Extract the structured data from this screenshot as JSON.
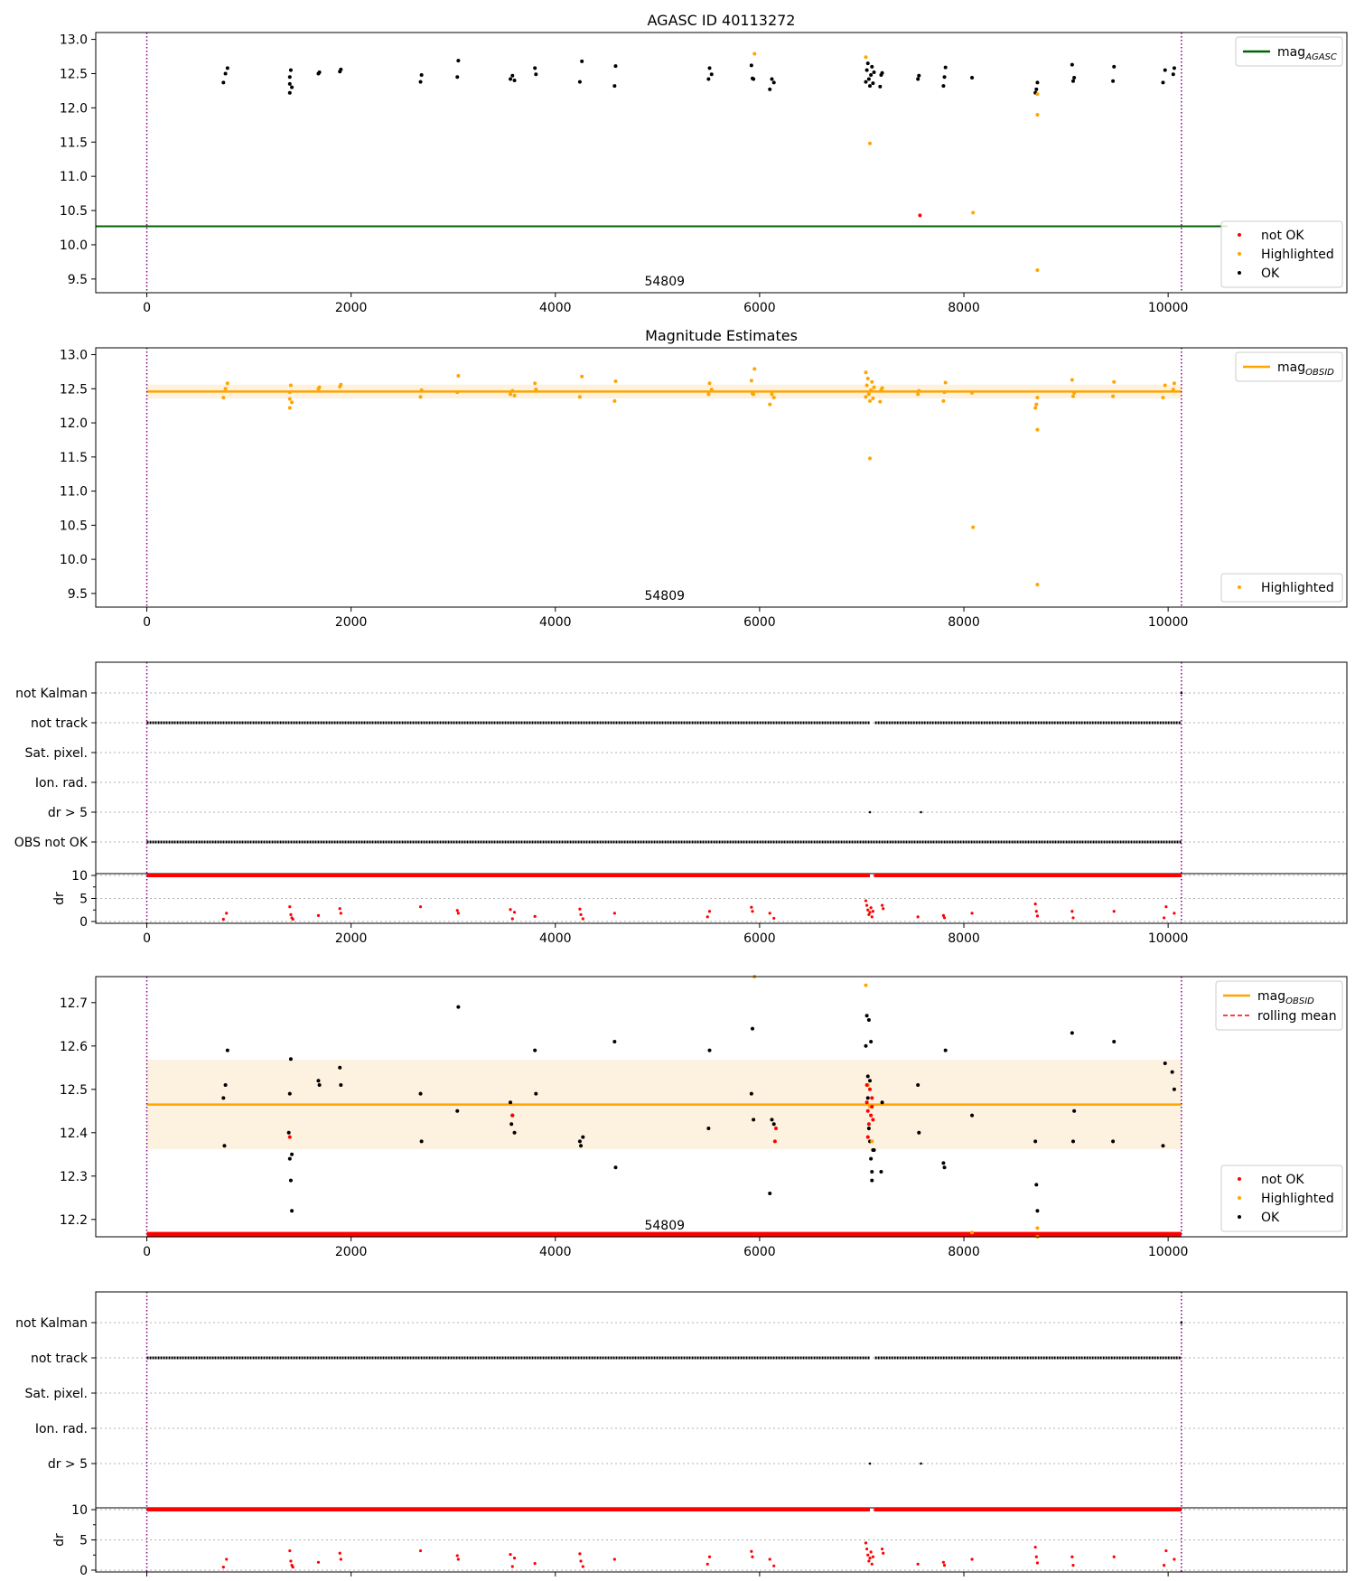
{
  "figure_title": "AGASC ID 40113272",
  "colors": {
    "not_ok": "#ff0000",
    "highlighted": "#ffa500",
    "ok": "#000000",
    "agasc_line": "#006400",
    "obsid_line": "#ffa500",
    "band": "#fdf1df",
    "obs_bound": "#800080",
    "grid": "#b0b0b0"
  },
  "chart_data": [
    {
      "id": "mag_vs_time",
      "type": "scatter",
      "title": "AGASC ID 40113272",
      "annotation": "54809",
      "xlim": [
        -500,
        11750
      ],
      "ylim": [
        9.3,
        13.1
      ],
      "xticks": [
        0,
        2000,
        4000,
        6000,
        8000,
        10000
      ],
      "yticks": [
        9.5,
        10.0,
        10.5,
        11.0,
        11.5,
        12.0,
        12.5,
        13.0
      ],
      "obs_bounds": [
        0,
        10130
      ],
      "grid": false,
      "legend_top": {
        "position": "top-right",
        "entries": [
          {
            "label": "mag",
            "sub": "AGASC",
            "color": "#006400"
          }
        ]
      },
      "legend_bottom": {
        "position": "bottom-right",
        "entries": [
          "not OK",
          "Highlighted",
          "OK"
        ]
      },
      "agasc_mag": {
        "value": 10.27,
        "x_range": [
          -500,
          10580
        ]
      },
      "series": [
        {
          "name": "OK",
          "x": [
            750,
            770,
            790,
            1400,
            1400,
            1400,
            1410,
            1420,
            1680,
            1690,
            1890,
            1900,
            2680,
            2690,
            3040,
            3050,
            3560,
            3580,
            3600,
            3800,
            3810,
            4240,
            4260,
            4580,
            4590,
            5500,
            5510,
            5530,
            5920,
            5930,
            5940,
            6100,
            6120,
            6140,
            7040,
            7050,
            7060,
            7070,
            7080,
            7090,
            7100,
            7110,
            7120,
            7180,
            7190,
            7200,
            7550,
            7560,
            7800,
            7810,
            7820,
            8080,
            8700,
            8710,
            8720,
            9060,
            9070,
            9080,
            9460,
            9470,
            9950,
            9970,
            10050,
            10060
          ],
          "y": [
            12.37,
            12.5,
            12.58,
            12.22,
            12.35,
            12.45,
            12.55,
            12.3,
            12.5,
            12.52,
            12.53,
            12.56,
            12.38,
            12.48,
            12.45,
            12.69,
            12.42,
            12.47,
            12.4,
            12.58,
            12.49,
            12.38,
            12.68,
            12.32,
            12.61,
            12.42,
            12.58,
            12.49,
            12.62,
            12.43,
            12.42,
            12.27,
            12.42,
            12.37,
            12.38,
            12.55,
            12.65,
            12.42,
            12.32,
            12.48,
            12.6,
            12.36,
            12.52,
            12.31,
            12.48,
            12.51,
            12.42,
            12.47,
            12.32,
            12.45,
            12.59,
            12.44,
            12.22,
            12.27,
            12.37,
            12.63,
            12.39,
            12.44,
            12.39,
            12.6,
            12.37,
            12.55,
            12.49,
            12.58
          ]
        },
        {
          "name": "Highlighted",
          "x": [
            5950,
            7040,
            7080,
            8720,
            8720,
            8720,
            8090
          ],
          "y": [
            12.79,
            12.74,
            11.48,
            12.2,
            11.9,
            9.63,
            10.47
          ]
        },
        {
          "name": "not OK",
          "x": [
            7570
          ],
          "y": [
            10.43
          ]
        }
      ]
    },
    {
      "id": "magnitude_estimates",
      "type": "scatter",
      "title": "Magnitude Estimates",
      "annotation": "54809",
      "xlim": [
        -500,
        11750
      ],
      "ylim": [
        9.3,
        13.1
      ],
      "xticks": [
        0,
        2000,
        4000,
        6000,
        8000,
        10000
      ],
      "yticks": [
        9.5,
        10.0,
        10.5,
        11.0,
        11.5,
        12.0,
        12.5,
        13.0
      ],
      "obs_bounds": [
        0,
        10130
      ],
      "grid": false,
      "legend_top": {
        "position": "top-right",
        "entries": [
          {
            "label": "mag",
            "sub": "OBSID",
            "color": "#ffa500"
          }
        ]
      },
      "legend_bottom": {
        "position": "bottom-right",
        "entries": [
          "Highlighted"
        ]
      },
      "mag_obsid": {
        "value": 12.46,
        "band": [
          12.36,
          12.56
        ],
        "x_range": [
          0,
          10130
        ]
      },
      "series": [
        {
          "name": "Highlighted",
          "x": [
            750,
            770,
            790,
            1400,
            1400,
            1400,
            1410,
            1420,
            1680,
            1690,
            1890,
            1900,
            2680,
            2690,
            3040,
            3050,
            3560,
            3580,
            3600,
            3800,
            3810,
            4240,
            4260,
            4580,
            4590,
            5500,
            5510,
            5530,
            5920,
            5930,
            5940,
            5950,
            6100,
            6120,
            6140,
            7040,
            7040,
            7050,
            7060,
            7070,
            7080,
            7080,
            7090,
            7100,
            7110,
            7120,
            7180,
            7190,
            7200,
            7550,
            7560,
            7800,
            7810,
            7820,
            8080,
            8090,
            8700,
            8710,
            8720,
            8720,
            8720,
            9060,
            9070,
            9080,
            9460,
            9470,
            9950,
            9970,
            10050,
            10060
          ],
          "y": [
            12.37,
            12.5,
            12.58,
            12.22,
            12.35,
            12.45,
            12.55,
            12.3,
            12.5,
            12.52,
            12.53,
            12.56,
            12.38,
            12.48,
            12.45,
            12.69,
            12.42,
            12.47,
            12.4,
            12.58,
            12.49,
            12.38,
            12.68,
            12.32,
            12.61,
            12.42,
            12.58,
            12.49,
            12.62,
            12.43,
            12.42,
            12.79,
            12.27,
            12.42,
            12.37,
            12.38,
            12.74,
            12.55,
            12.65,
            12.42,
            12.32,
            11.48,
            12.48,
            12.6,
            12.36,
            12.52,
            12.31,
            12.48,
            12.51,
            12.42,
            12.47,
            12.32,
            12.45,
            12.59,
            12.44,
            10.47,
            12.22,
            12.27,
            12.37,
            11.9,
            9.63,
            12.63,
            12.39,
            12.44,
            12.39,
            12.6,
            12.37,
            12.55,
            12.49,
            12.58
          ]
        }
      ]
    },
    {
      "id": "flags_1",
      "type": "scatter",
      "xlim": [
        -500,
        11750
      ],
      "xticks": [
        0,
        2000,
        4000,
        6000,
        8000,
        10000
      ],
      "obs_bounds": [
        0,
        10130
      ],
      "flag_labels": [
        "not Kalman",
        "not track",
        "Sat. pixel.",
        "Ion. rad.",
        "dr > 5",
        "OBS not OK"
      ],
      "flag_rows": {
        "not track": {
          "ranges": [
            [
              0,
              7080
            ],
            [
              7130,
              10130
            ]
          ]
        },
        "OBS not OK": {
          "ranges": [
            [
              0,
              10130
            ]
          ]
        },
        "dr > 5": {
          "x": [
            7080,
            7580
          ]
        },
        "not Kalman": {
          "x": [
            10130
          ]
        }
      },
      "dr": {
        "ylabel": "dr",
        "ylim": [
          0,
          10
        ],
        "yticks": [
          0,
          5,
          10
        ],
        "ceiling_ranges": [
          [
            0,
            7080
          ],
          [
            7120,
            10130
          ]
        ],
        "x": [
          750,
          780,
          1400,
          1410,
          1420,
          1430,
          1680,
          1890,
          1900,
          2680,
          3040,
          3050,
          3560,
          3580,
          3600,
          3800,
          4240,
          4250,
          4270,
          4580,
          5490,
          5510,
          5920,
          5930,
          6100,
          6140,
          7040,
          7050,
          7060,
          7070,
          7080,
          7090,
          7100,
          7110,
          7200,
          7210,
          7550,
          7800,
          7810,
          8080,
          8700,
          8710,
          8720,
          9060,
          9070,
          9470,
          9960,
          9980,
          10060
        ],
        "y": [
          0.5,
          1.8,
          3.2,
          1.5,
          0.8,
          0.5,
          1.3,
          2.8,
          1.8,
          3.2,
          2.4,
          1.8,
          2.6,
          0.6,
          2.0,
          1.1,
          2.7,
          1.5,
          0.6,
          1.8,
          1.0,
          2.2,
          3.1,
          2.2,
          1.8,
          0.7,
          4.5,
          3.5,
          2.5,
          1.5,
          2.0,
          3.0,
          1.0,
          2.2,
          3.5,
          2.8,
          1.0,
          1.3,
          0.8,
          1.8,
          3.8,
          2.2,
          1.2,
          2.2,
          0.8,
          2.2,
          0.8,
          3.2,
          1.8
        ]
      }
    },
    {
      "id": "mag_zoom",
      "type": "scatter",
      "annotation": "54809",
      "xlim": [
        -500,
        11750
      ],
      "ylim": [
        12.16,
        12.76
      ],
      "xticks": [
        0,
        2000,
        4000,
        6000,
        8000,
        10000
      ],
      "yticks": [
        12.2,
        12.3,
        12.4,
        12.5,
        12.6,
        12.7
      ],
      "obs_bounds": [
        0,
        10130
      ],
      "grid": false,
      "legend_top": {
        "position": "top-right",
        "entries": [
          {
            "label": "mag",
            "sub": "OBSID",
            "color": "#ffa500"
          },
          {
            "label": "rolling mean",
            "color": "#ff0000",
            "dashed": true
          }
        ]
      },
      "legend_bottom": {
        "position": "bottom-right",
        "entries": [
          "not OK",
          "Highlighted",
          "OK"
        ]
      },
      "mag_obsid": {
        "value": 12.465,
        "band": [
          12.362,
          12.568
        ],
        "x_range": [
          0,
          10130
        ]
      },
      "baseline": {
        "y": 12.165,
        "x_range": [
          0,
          10130
        ]
      },
      "series": [
        {
          "name": "OK",
          "x": [
            750,
            760,
            770,
            790,
            1390,
            1400,
            1400,
            1410,
            1410,
            1420,
            1420,
            1680,
            1690,
            1890,
            1900,
            2680,
            2690,
            3040,
            3050,
            3560,
            3570,
            3580,
            3600,
            3800,
            3810,
            4240,
            4250,
            4270,
            4580,
            4590,
            5500,
            5510,
            5920,
            5930,
            5940,
            6100,
            6120,
            6140,
            7040,
            7050,
            7060,
            7060,
            7070,
            7070,
            7080,
            7080,
            7090,
            7090,
            7100,
            7100,
            7110,
            7120,
            7190,
            7200,
            7550,
            7560,
            7800,
            7810,
            7820,
            8080,
            8700,
            8710,
            8720,
            9060,
            9070,
            9080,
            9460,
            9470,
            9950,
            9970,
            10040,
            10060
          ],
          "y": [
            12.48,
            12.37,
            12.51,
            12.59,
            12.4,
            12.34,
            12.49,
            12.57,
            12.29,
            12.22,
            12.35,
            12.52,
            12.51,
            12.55,
            12.51,
            12.49,
            12.38,
            12.45,
            12.69,
            12.47,
            12.42,
            12.44,
            12.4,
            12.59,
            12.49,
            12.38,
            12.37,
            12.39,
            12.61,
            12.32,
            12.41,
            12.59,
            12.49,
            12.64,
            12.43,
            12.26,
            12.43,
            12.42,
            12.6,
            12.67,
            12.53,
            12.48,
            12.66,
            12.41,
            12.52,
            12.38,
            12.61,
            12.34,
            12.31,
            12.29,
            12.36,
            12.36,
            12.31,
            12.47,
            12.51,
            12.4,
            12.33,
            12.32,
            12.59,
            12.44,
            12.38,
            12.28,
            12.22,
            12.63,
            12.38,
            12.45,
            12.38,
            12.61,
            12.37,
            12.56,
            12.54,
            12.5
          ]
        },
        {
          "name": "Highlighted",
          "x": [
            5950,
            7040,
            7060,
            7080,
            7100,
            8080,
            8720,
            8720
          ],
          "y": [
            12.76,
            12.74,
            12.51,
            12.46,
            12.38,
            12.17,
            12.18,
            12.16
          ]
        },
        {
          "name": "not OK",
          "x": [
            7050,
            7060,
            7070,
            7080,
            7090,
            7100,
            7110,
            1400,
            3580,
            6150,
            6160,
            7050,
            7060,
            7100
          ],
          "y": [
            12.47,
            12.45,
            12.42,
            12.5,
            12.44,
            12.48,
            12.43,
            12.39,
            12.44,
            12.38,
            12.41,
            12.51,
            12.39,
            12.46
          ]
        }
      ]
    },
    {
      "id": "flags_2",
      "type": "scatter",
      "xlim": [
        -500,
        11750
      ],
      "xticks": [
        0,
        2000,
        4000,
        6000,
        8000,
        10000
      ],
      "obs_bounds": [
        0,
        10130
      ],
      "flag_labels": [
        "not Kalman",
        "not track",
        "Sat. pixel.",
        "Ion. rad.",
        "dr > 5"
      ],
      "flag_rows": {
        "not track": {
          "ranges": [
            [
              0,
              7080
            ],
            [
              7130,
              10130
            ]
          ]
        },
        "dr > 5": {
          "x": [
            7080,
            7580
          ]
        },
        "not Kalman": {
          "x": [
            10130
          ]
        }
      },
      "dr": {
        "ylabel": "dr",
        "ylim": [
          0,
          10
        ],
        "yticks": [
          0,
          5,
          10
        ],
        "ceiling_ranges": [
          [
            0,
            7080
          ],
          [
            7120,
            10130
          ]
        ],
        "x": [
          750,
          780,
          1400,
          1410,
          1420,
          1430,
          1680,
          1890,
          1900,
          2680,
          3040,
          3050,
          3560,
          3580,
          3600,
          3800,
          4240,
          4250,
          4270,
          4580,
          5490,
          5510,
          5920,
          5930,
          6100,
          6140,
          7040,
          7050,
          7060,
          7070,
          7080,
          7090,
          7100,
          7110,
          7200,
          7210,
          7550,
          7800,
          7810,
          8080,
          8700,
          8710,
          8720,
          9060,
          9070,
          9470,
          9960,
          9980,
          10060
        ],
        "y": [
          0.5,
          1.8,
          3.2,
          1.5,
          0.8,
          0.5,
          1.3,
          2.8,
          1.8,
          3.2,
          2.4,
          1.8,
          2.6,
          0.6,
          2.0,
          1.1,
          2.7,
          1.5,
          0.6,
          1.8,
          1.0,
          2.2,
          3.1,
          2.2,
          1.8,
          0.7,
          4.5,
          3.5,
          2.5,
          1.5,
          2.0,
          3.0,
          1.0,
          2.2,
          3.5,
          2.8,
          1.0,
          1.3,
          0.8,
          1.8,
          3.8,
          2.2,
          1.2,
          2.2,
          0.8,
          2.2,
          0.8,
          3.2,
          1.8
        ]
      }
    }
  ]
}
